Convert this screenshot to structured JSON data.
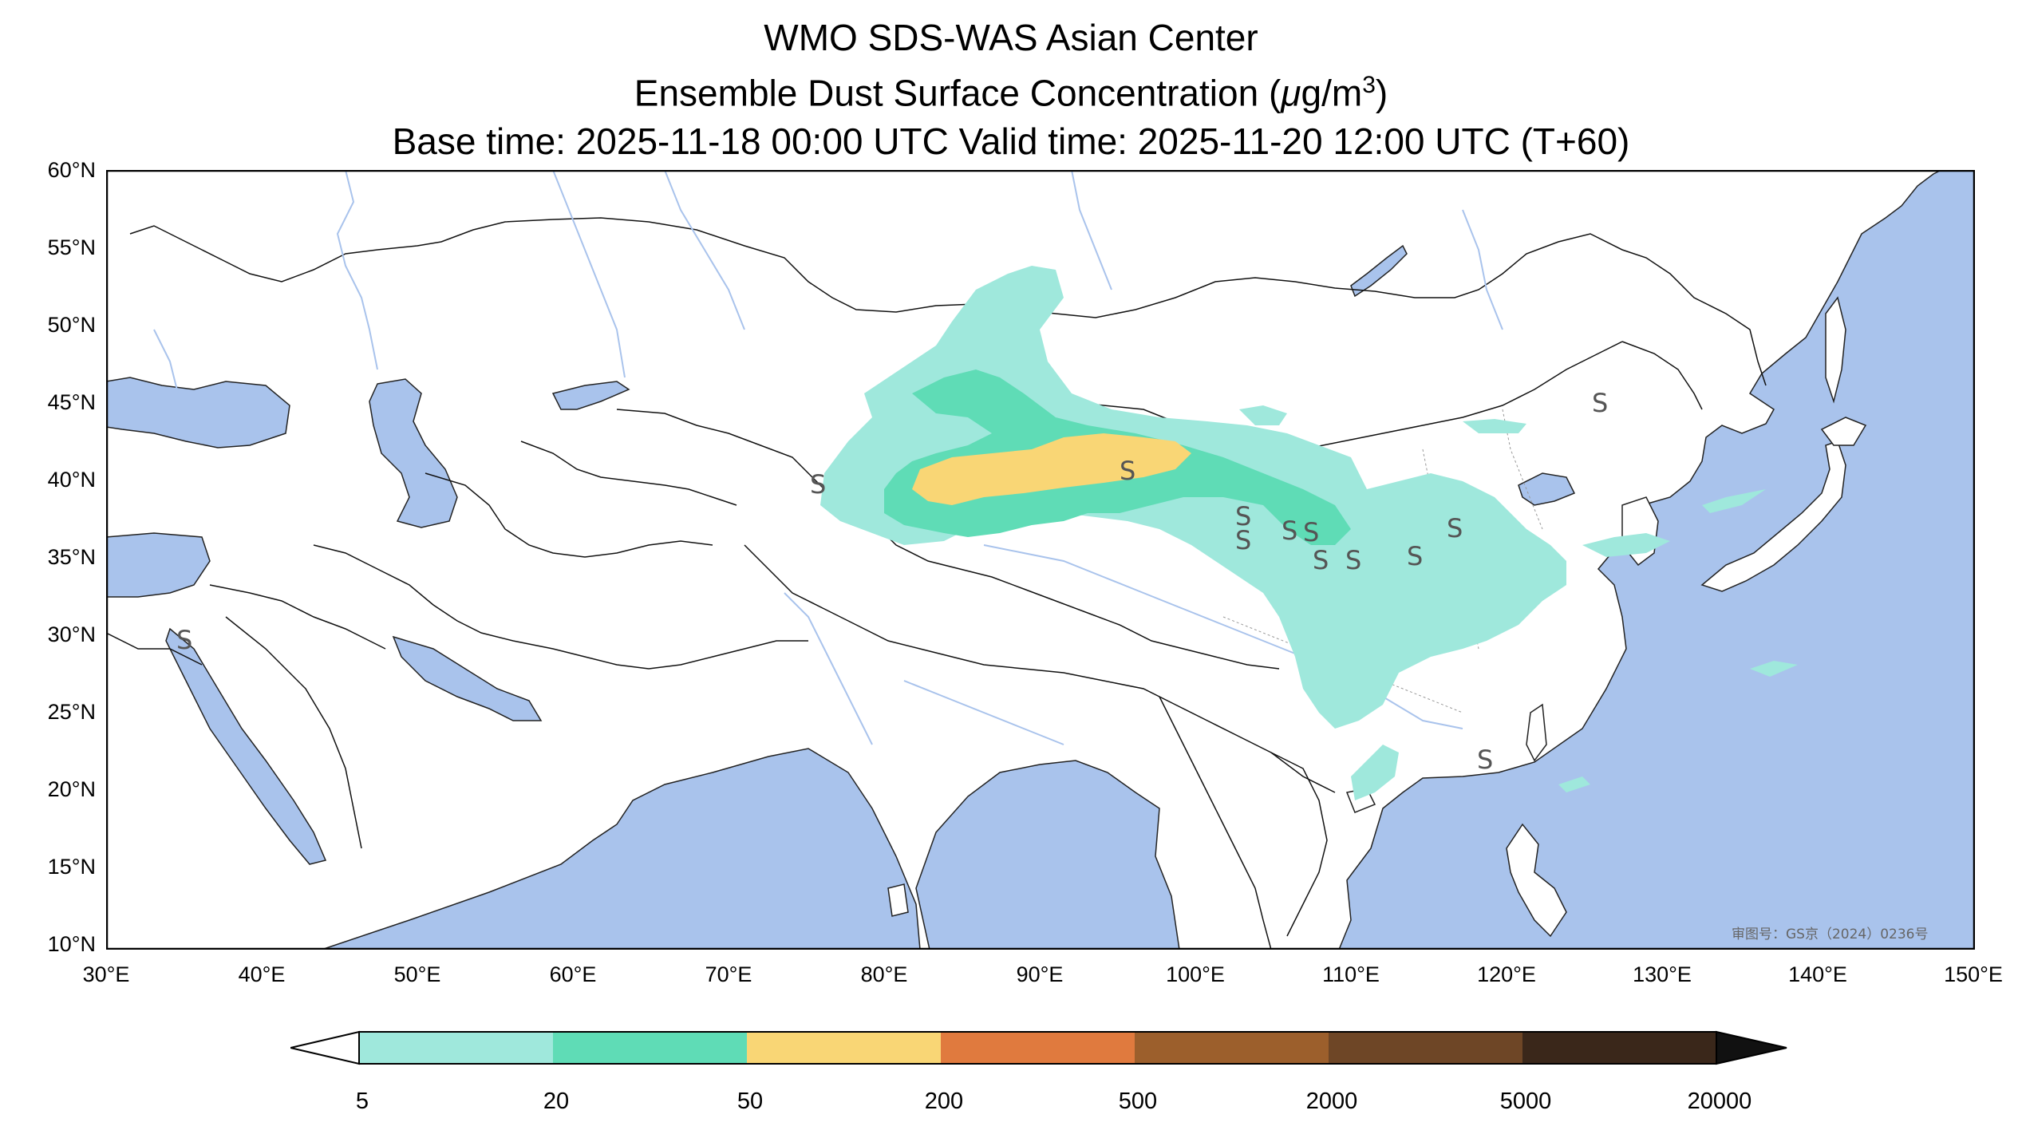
{
  "title": {
    "line1": "WMO SDS-WAS Asian Center",
    "line2_text": "Ensemble Dust Surface Concentration (",
    "line2_mu": "μ",
    "line2_unit": "g/m",
    "line2_sup": "3",
    "line2_close": ")",
    "line3": "Base time: 2025-11-18 00:00 UTC Valid time: 2025-11-20 12:00 UTC (T+60)"
  },
  "map": {
    "extent": {
      "lon": [
        30,
        150
      ],
      "lat": [
        10,
        60
      ]
    },
    "lat_ticks": [
      "60°N",
      "55°N",
      "50°N",
      "45°N",
      "40°N",
      "35°N",
      "30°N",
      "25°N",
      "20°N",
      "15°N",
      "10°N"
    ],
    "lon_ticks": [
      "30°E",
      "40°E",
      "50°E",
      "60°E",
      "70°E",
      "80°E",
      "90°E",
      "100°E",
      "110°E",
      "120°E",
      "130°E",
      "140°E",
      "150°E"
    ],
    "ocean_color": "#a9c3ec",
    "land_color": "#ffffff",
    "station_symbol": "S",
    "watermark": "审图号：GS京（2024）0236号"
  },
  "colorbar": {
    "levels": [
      "5",
      "20",
      "50",
      "200",
      "500",
      "2000",
      "5000",
      "20000"
    ],
    "colors": [
      "#9fe8dc",
      "#5fdcb6",
      "#f9d675",
      "#e07a3e",
      "#9c5f2c",
      "#6e4626",
      "#3a271a"
    ],
    "extend": "both"
  }
}
